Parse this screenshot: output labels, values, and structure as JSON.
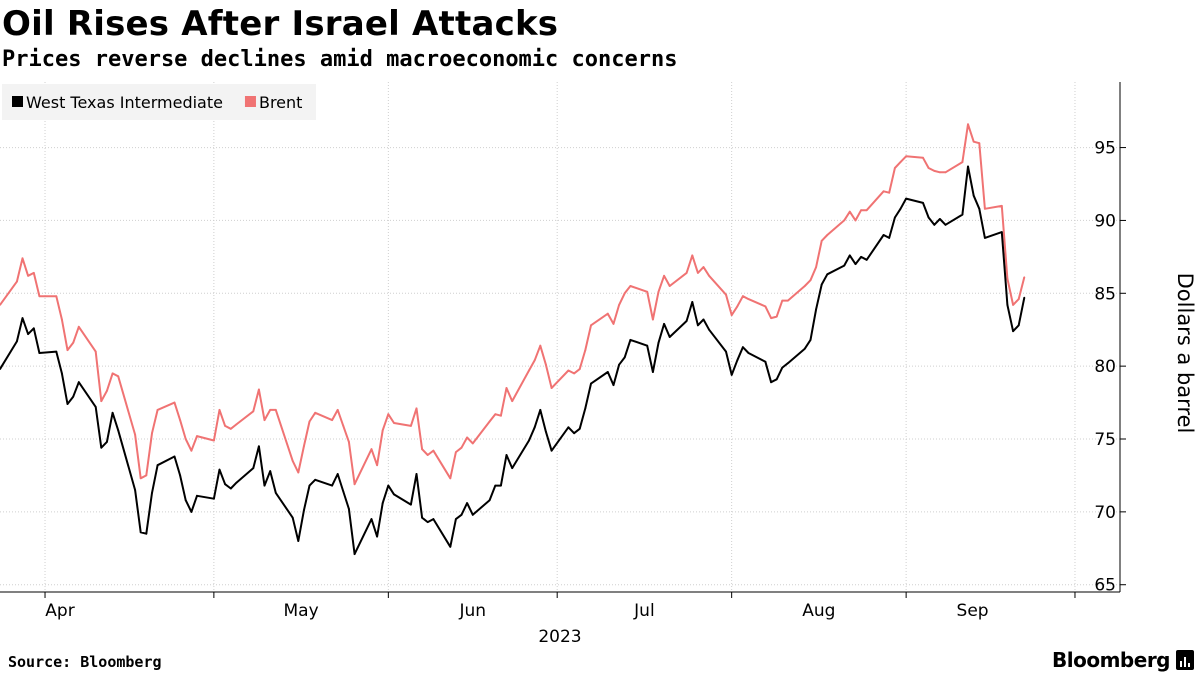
{
  "header": {
    "title": "Oil Rises After Israel Attacks",
    "subtitle": "Prices reverse declines amid macroeconomic concerns"
  },
  "footer": {
    "source": "Source: Bloomberg",
    "brand": "Bloomberg",
    "brand_icon": "bloomberg-terminal-icon"
  },
  "chart_data": {
    "type": "line",
    "ylabel": "Dollars a barrel",
    "xlabel": "2023",
    "ylim": [
      64.5,
      99.5
    ],
    "yticks": [
      65,
      70,
      75,
      80,
      85,
      90,
      95
    ],
    "y_axis_side": "right",
    "grid": "vertical dotted at month boundaries",
    "legend_placement": "top-left",
    "months": [
      {
        "label": "Apr",
        "start": "2023-04-01"
      },
      {
        "label": "May",
        "start": "2023-05-01"
      },
      {
        "label": "Jun",
        "start": "2023-06-01"
      },
      {
        "label": "Jul",
        "start": "2023-07-01"
      },
      {
        "label": "Aug",
        "start": "2023-08-01"
      },
      {
        "label": "Sep",
        "start": "2023-09-01"
      }
    ],
    "xlim": [
      "2023-03-24",
      "2023-10-09"
    ],
    "series": [
      {
        "name": "West Texas Intermediate",
        "color": "#000000",
        "points": [
          [
            "2023-03-24",
            79.8
          ],
          [
            "2023-03-27",
            81.7
          ],
          [
            "2023-03-28",
            83.3
          ],
          [
            "2023-03-29",
            82.2
          ],
          [
            "2023-03-30",
            82.6
          ],
          [
            "2023-03-31",
            80.9
          ],
          [
            "2023-04-03",
            81.0
          ],
          [
            "2023-04-04",
            79.5
          ],
          [
            "2023-04-05",
            77.4
          ],
          [
            "2023-04-06",
            77.9
          ],
          [
            "2023-04-07",
            78.9
          ],
          [
            "2023-04-10",
            77.2
          ],
          [
            "2023-04-11",
            74.4
          ],
          [
            "2023-04-12",
            74.8
          ],
          [
            "2023-04-13",
            76.8
          ],
          [
            "2023-04-14",
            75.6
          ],
          [
            "2023-04-17",
            71.5
          ],
          [
            "2023-04-18",
            68.6
          ],
          [
            "2023-04-19",
            68.5
          ],
          [
            "2023-04-20",
            71.3
          ],
          [
            "2023-04-21",
            73.2
          ],
          [
            "2023-04-24",
            73.8
          ],
          [
            "2023-04-25",
            72.5
          ],
          [
            "2023-04-26",
            70.8
          ],
          [
            "2023-04-27",
            70.0
          ],
          [
            "2023-04-28",
            71.1
          ],
          [
            "2023-05-01",
            70.9
          ],
          [
            "2023-05-02",
            72.9
          ],
          [
            "2023-05-03",
            71.9
          ],
          [
            "2023-05-04",
            71.6
          ],
          [
            "2023-05-05",
            72.0
          ],
          [
            "2023-05-08",
            73.0
          ],
          [
            "2023-05-09",
            74.5
          ],
          [
            "2023-05-10",
            71.8
          ],
          [
            "2023-05-11",
            72.8
          ],
          [
            "2023-05-12",
            71.3
          ],
          [
            "2023-05-15",
            69.6
          ],
          [
            "2023-05-16",
            68.0
          ],
          [
            "2023-05-17",
            70.1
          ],
          [
            "2023-05-18",
            71.8
          ],
          [
            "2023-05-19",
            72.2
          ],
          [
            "2023-05-22",
            71.8
          ],
          [
            "2023-05-23",
            72.6
          ],
          [
            "2023-05-24",
            71.4
          ],
          [
            "2023-05-25",
            70.2
          ],
          [
            "2023-05-26",
            67.1
          ],
          [
            "2023-05-29",
            69.5
          ],
          [
            "2023-05-30",
            68.3
          ],
          [
            "2023-05-31",
            70.6
          ],
          [
            "2023-06-01",
            71.8
          ],
          [
            "2023-06-02",
            71.2
          ],
          [
            "2023-06-05",
            70.5
          ],
          [
            "2023-06-06",
            72.6
          ],
          [
            "2023-06-07",
            69.6
          ],
          [
            "2023-06-08",
            69.3
          ],
          [
            "2023-06-09",
            69.5
          ],
          [
            "2023-06-12",
            67.6
          ],
          [
            "2023-06-13",
            69.5
          ],
          [
            "2023-06-14",
            69.8
          ],
          [
            "2023-06-15",
            70.6
          ],
          [
            "2023-06-16",
            69.8
          ],
          [
            "2023-06-19",
            70.8
          ],
          [
            "2023-06-20",
            71.8
          ],
          [
            "2023-06-21",
            71.8
          ],
          [
            "2023-06-22",
            73.9
          ],
          [
            "2023-06-23",
            73.0
          ],
          [
            "2023-06-26",
            74.9
          ],
          [
            "2023-06-27",
            75.8
          ],
          [
            "2023-06-28",
            77.0
          ],
          [
            "2023-06-29",
            75.5
          ],
          [
            "2023-06-30",
            74.2
          ],
          [
            "2023-07-03",
            75.8
          ],
          [
            "2023-07-04",
            75.4
          ],
          [
            "2023-07-05",
            75.7
          ],
          [
            "2023-07-06",
            77.1
          ],
          [
            "2023-07-07",
            78.8
          ],
          [
            "2023-07-10",
            79.6
          ],
          [
            "2023-07-11",
            78.7
          ],
          [
            "2023-07-12",
            80.1
          ],
          [
            "2023-07-13",
            80.6
          ],
          [
            "2023-07-14",
            81.8
          ],
          [
            "2023-07-17",
            81.4
          ],
          [
            "2023-07-18",
            79.6
          ],
          [
            "2023-07-19",
            81.6
          ],
          [
            "2023-07-20",
            82.9
          ],
          [
            "2023-07-21",
            82.0
          ],
          [
            "2023-07-24",
            83.1
          ],
          [
            "2023-07-25",
            84.4
          ],
          [
            "2023-07-26",
            82.8
          ],
          [
            "2023-07-27",
            83.2
          ],
          [
            "2023-07-28",
            82.5
          ],
          [
            "2023-07-31",
            81.0
          ],
          [
            "2023-08-01",
            79.4
          ],
          [
            "2023-08-02",
            80.4
          ],
          [
            "2023-08-03",
            81.3
          ],
          [
            "2023-08-04",
            80.9
          ],
          [
            "2023-08-07",
            80.3
          ],
          [
            "2023-08-08",
            78.9
          ],
          [
            "2023-08-09",
            79.1
          ],
          [
            "2023-08-10",
            79.9
          ],
          [
            "2023-08-11",
            80.2
          ],
          [
            "2023-08-14",
            81.2
          ],
          [
            "2023-08-15",
            81.8
          ],
          [
            "2023-08-16",
            83.9
          ],
          [
            "2023-08-17",
            85.6
          ],
          [
            "2023-08-18",
            86.3
          ],
          [
            "2023-08-21",
            86.9
          ],
          [
            "2023-08-22",
            87.6
          ],
          [
            "2023-08-23",
            87.0
          ],
          [
            "2023-08-24",
            87.5
          ],
          [
            "2023-08-25",
            87.3
          ],
          [
            "2023-08-28",
            89.0
          ],
          [
            "2023-08-29",
            88.8
          ],
          [
            "2023-08-30",
            90.2
          ],
          [
            "2023-08-31",
            90.8
          ],
          [
            "2023-09-01",
            91.5
          ],
          [
            "2023-09-04",
            91.2
          ],
          [
            "2023-09-05",
            90.2
          ],
          [
            "2023-09-06",
            89.7
          ],
          [
            "2023-09-07",
            90.1
          ],
          [
            "2023-09-08",
            89.7
          ],
          [
            "2023-09-11",
            90.4
          ],
          [
            "2023-09-12",
            93.7
          ],
          [
            "2023-09-13",
            91.7
          ],
          [
            "2023-09-14",
            90.8
          ],
          [
            "2023-09-15",
            88.8
          ],
          [
            "2023-09-18",
            89.2
          ],
          [
            "2023-09-19",
            84.2
          ],
          [
            "2023-09-20",
            82.4
          ],
          [
            "2023-09-21",
            82.8
          ],
          [
            "2023-09-22",
            84.7
          ]
        ]
      },
      {
        "name": "Brent",
        "color": "#f07373",
        "points": [
          [
            "2023-03-24",
            84.2
          ],
          [
            "2023-03-27",
            85.8
          ],
          [
            "2023-03-28",
            87.4
          ],
          [
            "2023-03-29",
            86.2
          ],
          [
            "2023-03-30",
            86.4
          ],
          [
            "2023-03-31",
            84.8
          ],
          [
            "2023-04-03",
            84.8
          ],
          [
            "2023-04-04",
            83.2
          ],
          [
            "2023-04-05",
            81.1
          ],
          [
            "2023-04-06",
            81.6
          ],
          [
            "2023-04-07",
            82.7
          ],
          [
            "2023-04-10",
            81.0
          ],
          [
            "2023-04-11",
            77.6
          ],
          [
            "2023-04-12",
            78.3
          ],
          [
            "2023-04-13",
            79.5
          ],
          [
            "2023-04-14",
            79.3
          ],
          [
            "2023-04-17",
            75.3
          ],
          [
            "2023-04-18",
            72.3
          ],
          [
            "2023-04-19",
            72.5
          ],
          [
            "2023-04-20",
            75.4
          ],
          [
            "2023-04-21",
            77.0
          ],
          [
            "2023-04-24",
            77.5
          ],
          [
            "2023-04-25",
            76.3
          ],
          [
            "2023-04-26",
            75.0
          ],
          [
            "2023-04-27",
            74.2
          ],
          [
            "2023-04-28",
            75.2
          ],
          [
            "2023-05-01",
            74.9
          ],
          [
            "2023-05-02",
            77.0
          ],
          [
            "2023-05-03",
            75.9
          ],
          [
            "2023-05-04",
            75.7
          ],
          [
            "2023-05-05",
            76.0
          ],
          [
            "2023-05-08",
            76.9
          ],
          [
            "2023-05-09",
            78.4
          ],
          [
            "2023-05-10",
            76.3
          ],
          [
            "2023-05-11",
            77.0
          ],
          [
            "2023-05-12",
            77.0
          ],
          [
            "2023-05-15",
            73.5
          ],
          [
            "2023-05-16",
            72.7
          ],
          [
            "2023-05-17",
            74.5
          ],
          [
            "2023-05-18",
            76.2
          ],
          [
            "2023-05-19",
            76.8
          ],
          [
            "2023-05-22",
            76.3
          ],
          [
            "2023-05-23",
            77.0
          ],
          [
            "2023-05-24",
            75.9
          ],
          [
            "2023-05-25",
            74.8
          ],
          [
            "2023-05-26",
            71.9
          ],
          [
            "2023-05-29",
            74.3
          ],
          [
            "2023-05-30",
            73.2
          ],
          [
            "2023-05-31",
            75.6
          ],
          [
            "2023-06-01",
            76.7
          ],
          [
            "2023-06-02",
            76.1
          ],
          [
            "2023-06-05",
            75.9
          ],
          [
            "2023-06-06",
            77.1
          ],
          [
            "2023-06-07",
            74.3
          ],
          [
            "2023-06-08",
            73.9
          ],
          [
            "2023-06-09",
            74.2
          ],
          [
            "2023-06-12",
            72.3
          ],
          [
            "2023-06-13",
            74.1
          ],
          [
            "2023-06-14",
            74.4
          ],
          [
            "2023-06-15",
            75.1
          ],
          [
            "2023-06-16",
            74.7
          ],
          [
            "2023-06-19",
            76.2
          ],
          [
            "2023-06-20",
            76.7
          ],
          [
            "2023-06-21",
            76.6
          ],
          [
            "2023-06-22",
            78.5
          ],
          [
            "2023-06-23",
            77.6
          ],
          [
            "2023-06-26",
            79.7
          ],
          [
            "2023-06-27",
            80.4
          ],
          [
            "2023-06-28",
            81.4
          ],
          [
            "2023-06-29",
            80.1
          ],
          [
            "2023-06-30",
            78.5
          ],
          [
            "2023-07-03",
            79.7
          ],
          [
            "2023-07-04",
            79.5
          ],
          [
            "2023-07-05",
            79.8
          ],
          [
            "2023-07-06",
            81.1
          ],
          [
            "2023-07-07",
            82.8
          ],
          [
            "2023-07-10",
            83.6
          ],
          [
            "2023-07-11",
            82.9
          ],
          [
            "2023-07-12",
            84.2
          ],
          [
            "2023-07-13",
            85.0
          ],
          [
            "2023-07-14",
            85.5
          ],
          [
            "2023-07-17",
            85.1
          ],
          [
            "2023-07-18",
            83.2
          ],
          [
            "2023-07-19",
            85.1
          ],
          [
            "2023-07-20",
            86.2
          ],
          [
            "2023-07-21",
            85.5
          ],
          [
            "2023-07-24",
            86.4
          ],
          [
            "2023-07-25",
            87.6
          ],
          [
            "2023-07-26",
            86.4
          ],
          [
            "2023-07-27",
            86.8
          ],
          [
            "2023-07-28",
            86.2
          ],
          [
            "2023-07-31",
            84.9
          ],
          [
            "2023-08-01",
            83.5
          ],
          [
            "2023-08-02",
            84.1
          ],
          [
            "2023-08-03",
            84.8
          ],
          [
            "2023-08-04",
            84.6
          ],
          [
            "2023-08-07",
            84.1
          ],
          [
            "2023-08-08",
            83.3
          ],
          [
            "2023-08-09",
            83.4
          ],
          [
            "2023-08-10",
            84.5
          ],
          [
            "2023-08-11",
            84.5
          ],
          [
            "2023-08-14",
            85.5
          ],
          [
            "2023-08-15",
            85.9
          ],
          [
            "2023-08-16",
            86.8
          ],
          [
            "2023-08-17",
            88.6
          ],
          [
            "2023-08-18",
            89.0
          ],
          [
            "2023-08-21",
            90.0
          ],
          [
            "2023-08-22",
            90.6
          ],
          [
            "2023-08-23",
            90.0
          ],
          [
            "2023-08-24",
            90.7
          ],
          [
            "2023-08-25",
            90.7
          ],
          [
            "2023-08-28",
            92.0
          ],
          [
            "2023-08-29",
            91.9
          ],
          [
            "2023-08-30",
            93.6
          ],
          [
            "2023-08-31",
            94.0
          ],
          [
            "2023-09-01",
            94.4
          ],
          [
            "2023-09-04",
            94.3
          ],
          [
            "2023-09-05",
            93.6
          ],
          [
            "2023-09-06",
            93.4
          ],
          [
            "2023-09-07",
            93.3
          ],
          [
            "2023-09-08",
            93.3
          ],
          [
            "2023-09-11",
            94.0
          ],
          [
            "2023-09-12",
            96.6
          ],
          [
            "2023-09-13",
            95.4
          ],
          [
            "2023-09-14",
            95.3
          ],
          [
            "2023-09-15",
            90.8
          ],
          [
            "2023-09-18",
            91.0
          ],
          [
            "2023-09-19",
            86.0
          ],
          [
            "2023-09-20",
            84.2
          ],
          [
            "2023-09-21",
            84.6
          ],
          [
            "2023-09-22",
            86.1
          ]
        ]
      }
    ]
  }
}
